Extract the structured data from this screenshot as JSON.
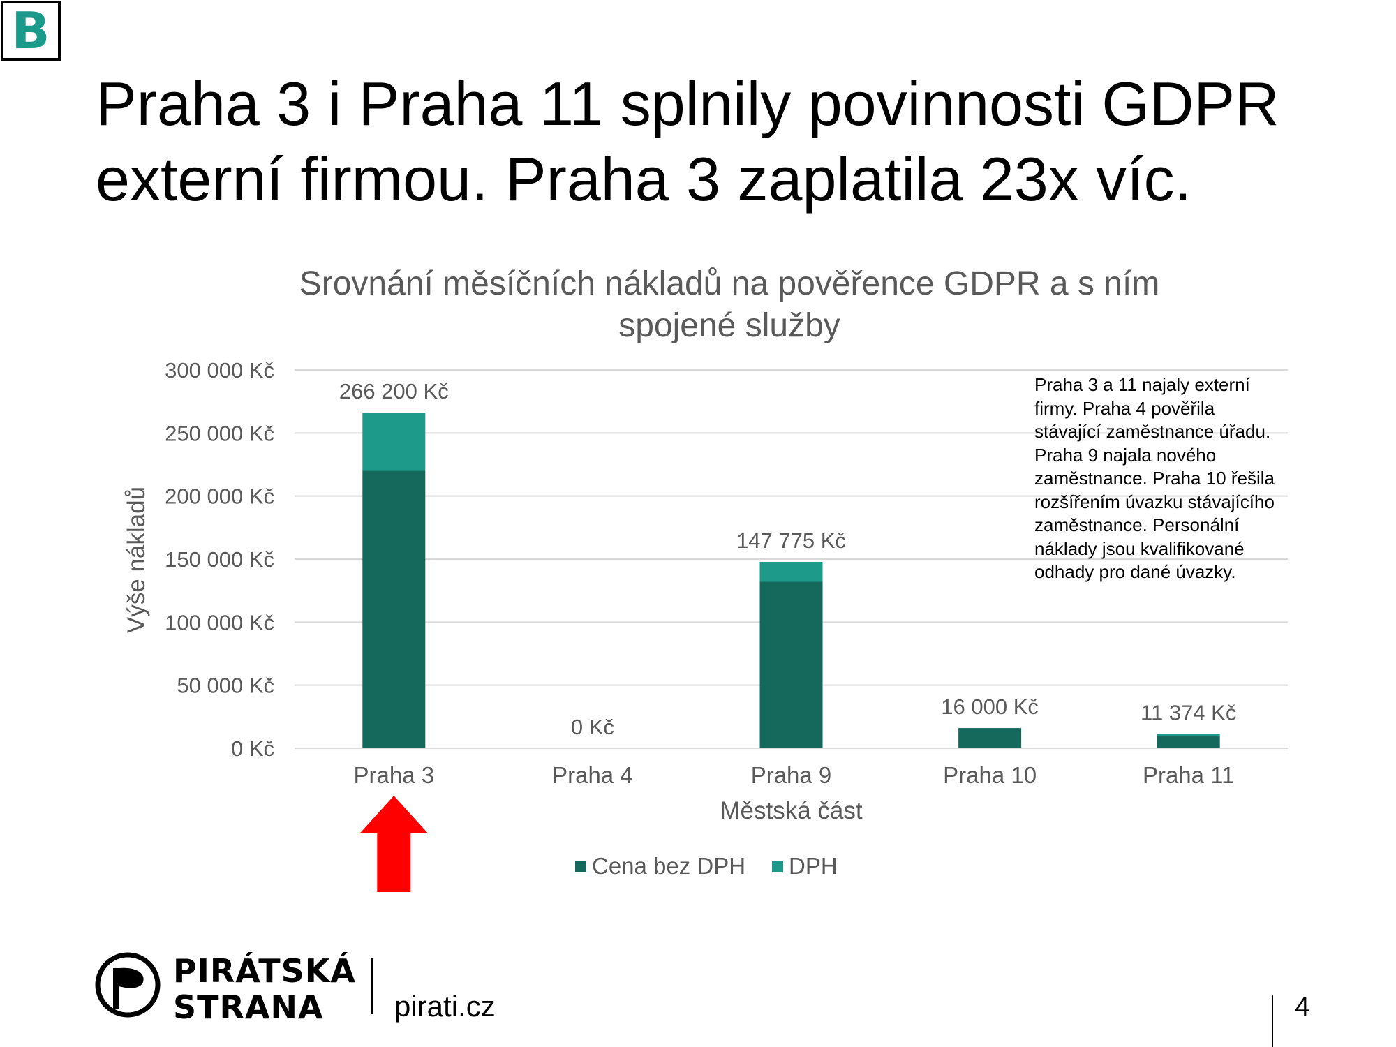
{
  "badge": {
    "letter": "B"
  },
  "headline": {
    "line1": "Praha 3 i Praha 11 splnily povinnosti GDPR",
    "line2": "externí firmou. Praha 3 zaplatila 23x víc."
  },
  "note": {
    "text": "Praha 3 a 11 najaly externí firmy. Praha 4 pověřila stávající zaměstnance úřadu. Praha 9 najala nového zaměstnance. Praha 10 řešila rozšířením úvazku stávajícího zaměstnance. Personální náklady jsou kvalifikované odhady pro dané úvazky."
  },
  "footer": {
    "brand_line1": "PIRÁTSKÁ",
    "brand_line2": "STRANA",
    "website": "pirati.cz",
    "page_number": "4"
  },
  "colors": {
    "cena_bez_dph": "#14695c",
    "dph": "#1e9a8b",
    "arrow": "#ff0000",
    "text_gray": "#595959",
    "grid": "#d9d9d9"
  },
  "chart_data": {
    "type": "bar",
    "stacked": true,
    "title_lines": [
      "Srovnání měsíčních nákladů na pověřence GDPR a s ním",
      "spojené služby"
    ],
    "xlabel": "Městská část",
    "ylabel": "Výše nákladů",
    "categories": [
      "Praha 3",
      "Praha 4",
      "Praha 9",
      "Praha 10",
      "Praha 11"
    ],
    "series": [
      {
        "name": "Cena bez DPH",
        "values": [
          220000,
          0,
          132000,
          16000,
          9400
        ]
      },
      {
        "name": "DPH",
        "values": [
          46200,
          0,
          15775,
          0,
          1974
        ]
      }
    ],
    "total_labels": [
      "266 200 Kč",
      "0 Kč",
      "147 775 Kč",
      "16 000 Kč",
      "11 374 Kč"
    ],
    "ylim": [
      0,
      300000
    ],
    "yticks": [
      0,
      50000,
      100000,
      150000,
      200000,
      250000,
      300000
    ],
    "ytick_labels": [
      "0 Kč",
      "50 000 Kč",
      "100 000 Kč",
      "150 000 Kč",
      "200 000 Kč",
      "250 000 Kč",
      "300 000 Kč"
    ],
    "grid": true,
    "legend_position": "bottom",
    "highlight": {
      "category": "Praha 3",
      "marker": "red up arrow"
    }
  }
}
